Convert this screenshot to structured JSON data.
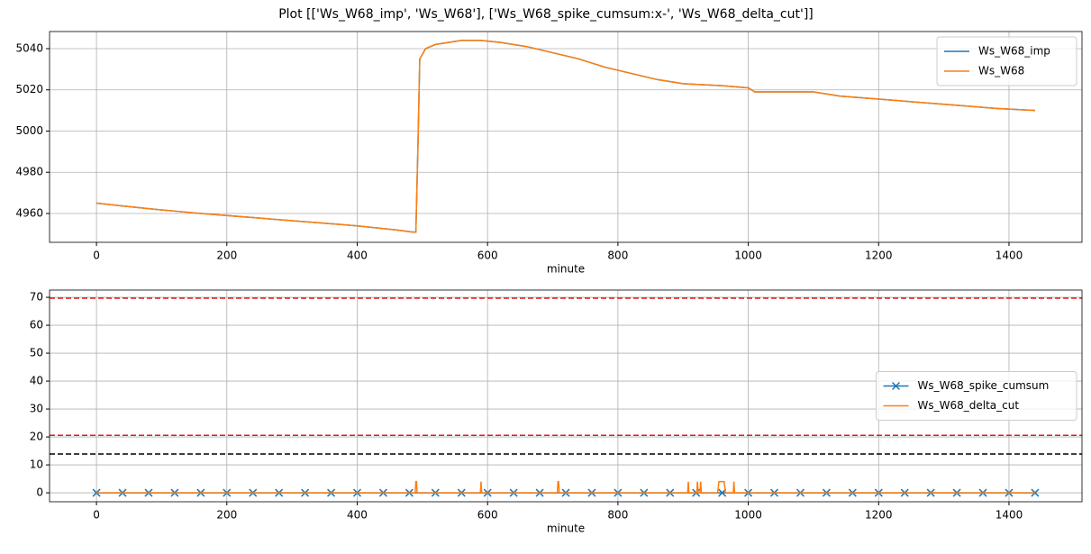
{
  "title": "Plot [['Ws_W68_imp', 'Ws_W68'], ['Ws_W68_spike_cumsum:x-', 'Ws_W68_delta_cut']]",
  "chart_data": [
    {
      "type": "line",
      "xlabel": "minute",
      "grid": true,
      "legend": "upper right",
      "xlim": [
        -72,
        1512
      ],
      "xticks": [
        0,
        200,
        400,
        600,
        800,
        1000,
        1200,
        1400
      ],
      "ylim": [
        4946,
        5048.3
      ],
      "yticks": [
        4960,
        4980,
        5000,
        5020,
        5040
      ],
      "x": [
        0,
        30,
        60,
        90,
        125,
        160,
        200,
        240,
        280,
        320,
        360,
        400,
        430,
        460,
        485,
        490,
        493,
        496,
        505,
        520,
        540,
        560,
        590,
        620,
        660,
        700,
        740,
        780,
        820,
        860,
        900,
        960,
        1000,
        1010,
        1100,
        1140,
        1180,
        1220,
        1260,
        1300,
        1340,
        1380,
        1440
      ],
      "series": [
        {
          "name": "Ws_W68_imp",
          "color": "#1f77b4",
          "values": [
            4965,
            4964,
            4963,
            4962,
            4961,
            4960,
            4959,
            4958,
            4957,
            4956,
            4955,
            4954,
            4953,
            4952,
            4951,
            4951,
            4990,
            5035,
            5040,
            5042,
            5043,
            5044,
            5044,
            5043,
            5041,
            5038,
            5035,
            5031,
            5028,
            5025,
            5023,
            5022,
            5021,
            5019,
            5019,
            5017,
            5016,
            5015,
            5014,
            5013,
            5012,
            5011,
            5010
          ]
        },
        {
          "name": "Ws_W68",
          "color": "#ff7f0e",
          "values": [
            4965,
            4964,
            4963,
            4962,
            4961,
            4960,
            4959,
            4958,
            4957,
            4956,
            4955,
            4954,
            4953,
            4952,
            4951,
            4951,
            4990,
            5035,
            5040,
            5042,
            5043,
            5044,
            5044,
            5043,
            5041,
            5038,
            5035,
            5031,
            5028,
            5025,
            5023,
            5022,
            5021,
            5019,
            5019,
            5017,
            5016,
            5015,
            5014,
            5013,
            5012,
            5011,
            5010
          ]
        }
      ]
    },
    {
      "type": "line",
      "xlabel": "minute",
      "grid": true,
      "legend": "center right",
      "xlim": [
        -72,
        1512
      ],
      "xticks": [
        0,
        200,
        400,
        600,
        800,
        1000,
        1200,
        1400
      ],
      "ylim": [
        -3.2,
        72.6
      ],
      "yticks": [
        0,
        10,
        20,
        30,
        40,
        50,
        60,
        70
      ],
      "hlines": [
        {
          "value": 69.7,
          "color": "#e41a1c"
        },
        {
          "value": 20.6,
          "color": "#e41a1c"
        },
        {
          "value": 13.9,
          "color": "#000000"
        }
      ],
      "series": [
        {
          "name": "Ws_W68_spike_cumsum",
          "color": "#1f77b4",
          "marker": "x",
          "x": [
            0,
            40,
            80,
            120,
            160,
            200,
            240,
            280,
            320,
            360,
            400,
            440,
            480,
            520,
            560,
            600,
            640,
            680,
            720,
            760,
            800,
            840,
            880,
            920,
            960,
            1000,
            1040,
            1080,
            1120,
            1160,
            1200,
            1240,
            1280,
            1320,
            1360,
            1400,
            1440
          ],
          "values": [
            0,
            0,
            0,
            0,
            0,
            0,
            0,
            0,
            0,
            0,
            0,
            0,
            0,
            0,
            0,
            0,
            0,
            0,
            0,
            0,
            0,
            0,
            0,
            0,
            0,
            0,
            0,
            0,
            0,
            0,
            0,
            0,
            0,
            0,
            0,
            0,
            0
          ]
        },
        {
          "name": "Ws_W68_delta_cut",
          "color": "#ff7f0e",
          "x": [
            0,
            489,
            490,
            491,
            492,
            589,
            590,
            591,
            707,
            708,
            709,
            710,
            907,
            908,
            909,
            921,
            922,
            923,
            926,
            927,
            928,
            953,
            955,
            963,
            965,
            977,
            978,
            979,
            1440
          ],
          "values": [
            0,
            0,
            4,
            4,
            0,
            0,
            4,
            0,
            0,
            4,
            4,
            0,
            0,
            4,
            0,
            0,
            4,
            0,
            0,
            4,
            0,
            0,
            4,
            4,
            0,
            0,
            4,
            0,
            0
          ]
        }
      ]
    }
  ]
}
